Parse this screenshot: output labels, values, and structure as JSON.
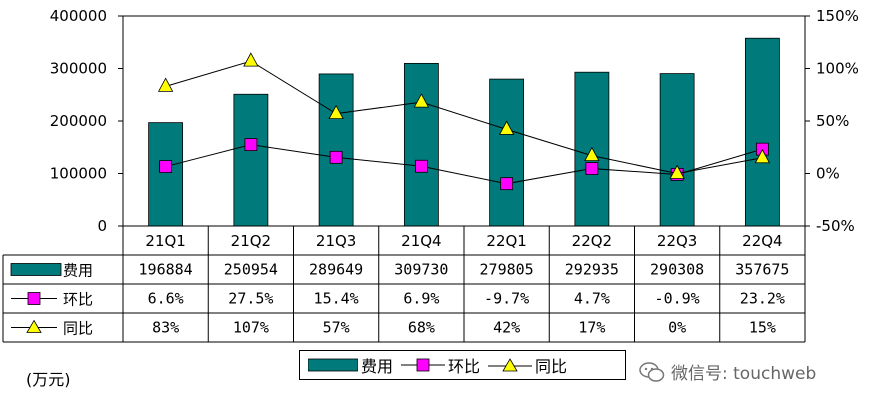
{
  "chart_data": {
    "type": "bar",
    "categories": [
      "21Q1",
      "21Q2",
      "21Q3",
      "21Q4",
      "22Q1",
      "22Q2",
      "22Q3",
      "22Q4"
    ],
    "series": [
      {
        "name": "费用",
        "type": "bar",
        "axis": "left",
        "color": "#007a7a",
        "values": [
          196884,
          250954,
          289649,
          309730,
          279805,
          292935,
          290308,
          357675
        ]
      },
      {
        "name": "环比",
        "type": "line",
        "axis": "right",
        "color": "#ff00ff",
        "values": [
          6.6,
          27.5,
          15.4,
          6.9,
          -9.7,
          4.7,
          -0.9,
          23.2
        ]
      },
      {
        "name": "同比",
        "type": "line",
        "axis": "right",
        "color": "#ffff00",
        "values": [
          83,
          107,
          57,
          68,
          42,
          17,
          0,
          15
        ]
      }
    ],
    "left_axis": {
      "min": 0,
      "max": 400000,
      "ticks": [
        "0",
        "100000",
        "200000",
        "300000",
        "400000"
      ]
    },
    "right_axis": {
      "min": -50,
      "max": 150,
      "ticks": [
        "-50%",
        "0%",
        "50%",
        "100%",
        "150%"
      ]
    },
    "table": {
      "row_labels": [
        "费用",
        "环比",
        "同比"
      ],
      "rows": [
        [
          "196884",
          "250954",
          "289649",
          "309730",
          "279805",
          "292935",
          "290308",
          "357675"
        ],
        [
          "6.6%",
          "27.5%",
          "15.4%",
          "6.9%",
          "-9.7%",
          "4.7%",
          "-0.9%",
          "23.2%"
        ],
        [
          "83%",
          "107%",
          "57%",
          "68%",
          "42%",
          "17%",
          "0%",
          "15%"
        ]
      ]
    },
    "unit_label": "(万元)",
    "legend": [
      "费用",
      "环比",
      "同比"
    ],
    "legend_placement": "bottom",
    "grid": false
  },
  "watermark": "微信号: touchweb"
}
